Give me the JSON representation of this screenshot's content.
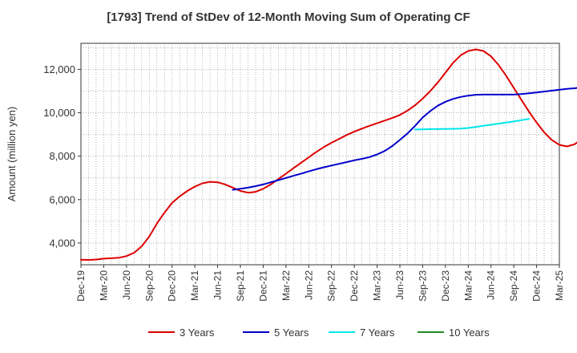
{
  "chart_data": {
    "type": "line",
    "title": "[1793]  Trend of StDev of 12-Month Moving Sum of Operating CF",
    "ylabel": "Amount (million yen)",
    "xlabel": "",
    "ylim": [
      3000,
      13200
    ],
    "yticks": [
      4000,
      6000,
      8000,
      10000,
      12000
    ],
    "ytick_labels": [
      "4,000",
      "6,000",
      "8,000",
      "10,000",
      "12,000"
    ],
    "xlim": [
      "2019-12",
      "2025-03"
    ],
    "xticks": [
      "Dec-19",
      "Mar-20",
      "Jun-20",
      "Sep-20",
      "Dec-20",
      "Mar-21",
      "Jun-21",
      "Sep-21",
      "Dec-21",
      "Mar-22",
      "Jun-22",
      "Sep-22",
      "Dec-22",
      "Mar-23",
      "Jun-23",
      "Sep-23",
      "Dec-23",
      "Mar-24",
      "Jun-24",
      "Sep-24",
      "Dec-24",
      "Mar-25"
    ],
    "grid": true,
    "legend_position": "bottom",
    "series": [
      {
        "name": "3 Years",
        "color": "#dd0000",
        "start": "2019-12",
        "values": [
          3230,
          3220,
          3240,
          3280,
          3300,
          3320,
          3400,
          3550,
          3850,
          4300,
          4900,
          5400,
          5850,
          6150,
          6400,
          6600,
          6750,
          6820,
          6800,
          6700,
          6550,
          6400,
          6320,
          6360,
          6500,
          6700,
          6950,
          7200,
          7450,
          7700,
          7950,
          8200,
          8420,
          8620,
          8800,
          8980,
          9130,
          9270,
          9400,
          9520,
          9640,
          9760,
          9900,
          10100,
          10350,
          10650,
          11000,
          11400,
          11850,
          12300,
          12650,
          12850,
          12920,
          12850,
          12600,
          12200,
          11700,
          11150,
          10600,
          10050,
          9550,
          9100,
          8750,
          8520,
          8450,
          8550,
          8800,
          9100,
          9450,
          9800
        ]
      },
      {
        "name": "5 Years",
        "color": "#0000cc",
        "start": "2021-08",
        "values": [
          6450,
          6500,
          6550,
          6620,
          6700,
          6800,
          6900,
          7000,
          7100,
          7200,
          7300,
          7400,
          7490,
          7570,
          7650,
          7730,
          7810,
          7880,
          7960,
          8080,
          8240,
          8470,
          8750,
          9050,
          9400,
          9780,
          10080,
          10330,
          10510,
          10640,
          10730,
          10790,
          10830,
          10840,
          10840,
          10840,
          10840,
          10840,
          10860,
          10900,
          10940,
          10980,
          11020,
          11060,
          11100,
          11130,
          11170
        ]
      },
      {
        "name": "7 Years",
        "color": "#00e5ee",
        "start": "2023-08",
        "values": [
          9230,
          9240,
          9250,
          9250,
          9260,
          9260,
          9270,
          9300,
          9350,
          9400,
          9450,
          9500,
          9550,
          9600,
          9660,
          9720
        ]
      },
      {
        "name": "10 Years",
        "color": "#228b22",
        "start": "2024-09",
        "values": []
      }
    ]
  }
}
